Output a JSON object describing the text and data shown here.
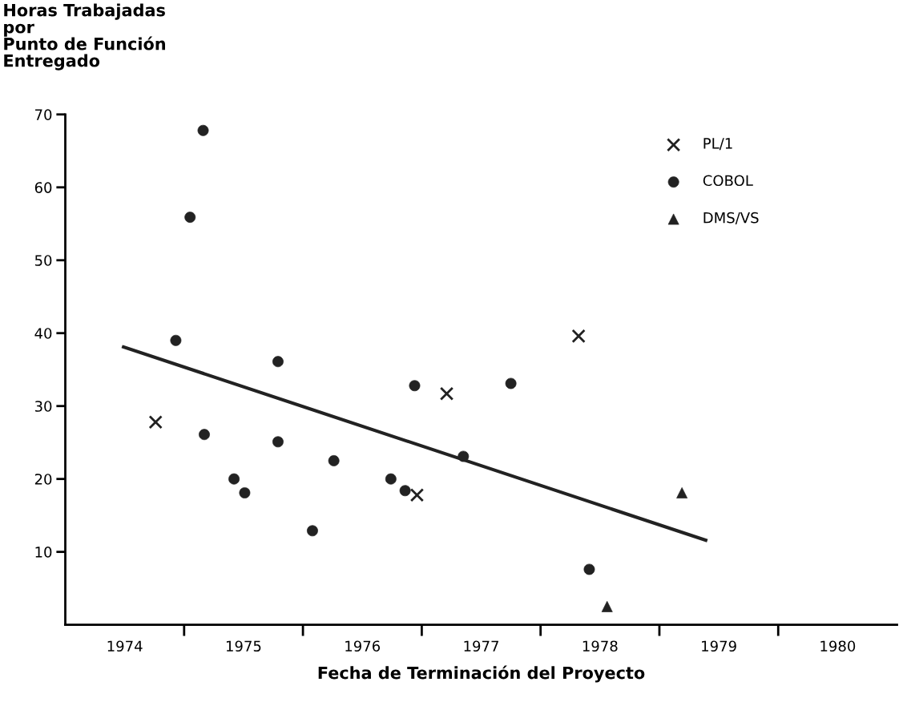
{
  "chart_data": {
    "type": "scatter",
    "ylabel": "Horas Trabajadas\npor\nPunto de Función\nEntregado",
    "xlabel": "Fecha de Terminación del Proyecto",
    "xlim": [
      1974,
      1981
    ],
    "ylim": [
      0,
      70
    ],
    "xticks": [
      {
        "value": 1974.5,
        "label": "1974"
      },
      {
        "value": 1975,
        "label": null
      },
      {
        "value": 1975.5,
        "label": "1975"
      },
      {
        "value": 1976,
        "label": null
      },
      {
        "value": 1976.5,
        "label": "1976"
      },
      {
        "value": 1977,
        "label": null
      },
      {
        "value": 1977.5,
        "label": "1977"
      },
      {
        "value": 1978,
        "label": null
      },
      {
        "value": 1978.5,
        "label": "1978"
      },
      {
        "value": 1979,
        "label": null
      },
      {
        "value": 1979.5,
        "label": "1979"
      },
      {
        "value": 1980,
        "label": null
      },
      {
        "value": 1980.5,
        "label": "1980"
      }
    ],
    "yticks": [
      10,
      20,
      30,
      40,
      50,
      60,
      70
    ],
    "grid": false,
    "legend": "top right",
    "series": [
      {
        "name": "PL/1",
        "type": "scatter",
        "marker": "cross",
        "color": "#222222",
        "x": [
          1974.76,
          1976.96,
          1977.21,
          1978.32
        ],
        "values": [
          27.8,
          17.8,
          31.7,
          39.6
        ]
      },
      {
        "name": "COBOL",
        "type": "scatter",
        "marker": "circle",
        "color": "#222222",
        "x": [
          1974.93,
          1975.05,
          1975.16,
          1975.17,
          1975.42,
          1975.51,
          1975.79,
          1975.79,
          1976.08,
          1976.26,
          1976.74,
          1976.86,
          1976.94,
          1977.35,
          1977.75,
          1978.41
        ],
        "values": [
          39.0,
          55.9,
          67.8,
          26.1,
          20.0,
          18.1,
          36.1,
          25.1,
          12.9,
          22.5,
          20.0,
          18.4,
          32.8,
          23.1,
          33.1,
          7.6
        ]
      },
      {
        "name": "DMS/VS",
        "type": "scatter",
        "marker": "triangle",
        "color": "#222222",
        "x": [
          1978.56,
          1979.19
        ],
        "values": [
          2.5,
          18.1
        ]
      },
      {
        "type": "line",
        "marker": "none",
        "line_style": "solid",
        "color": "#222222",
        "x": [
          1974.49,
          1979.39
        ],
        "values": [
          38.1,
          11.6
        ]
      }
    ]
  }
}
